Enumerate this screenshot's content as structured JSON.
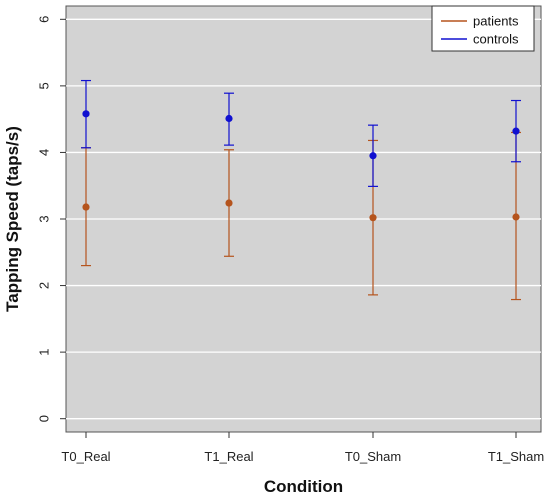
{
  "chart_data": {
    "type": "scatter",
    "title": "",
    "xlabel": "Condition",
    "ylabel": "Tapping Speed (taps/s)",
    "categories": [
      "T0_Real",
      "T1_Real",
      "T0_Sham",
      "T1_Sham"
    ],
    "ylim": [
      -0.2,
      6.2
    ],
    "yticks": [
      0,
      1,
      2,
      3,
      4,
      5,
      6
    ],
    "grid": true,
    "legend_position": "top-right",
    "background": "#d3d3d3",
    "series": [
      {
        "name": "patients",
        "color": "#b5541d",
        "values": [
          3.18,
          3.24,
          3.02,
          3.03
        ],
        "lower": [
          2.3,
          2.44,
          1.86,
          1.79
        ],
        "upper": [
          4.07,
          4.04,
          4.18,
          4.3
        ]
      },
      {
        "name": "controls",
        "color": "#1010d0",
        "values": [
          4.58,
          4.51,
          3.95,
          4.32
        ],
        "lower": [
          4.07,
          4.11,
          3.49,
          3.86
        ],
        "upper": [
          5.08,
          4.89,
          4.41,
          4.78
        ]
      }
    ]
  }
}
